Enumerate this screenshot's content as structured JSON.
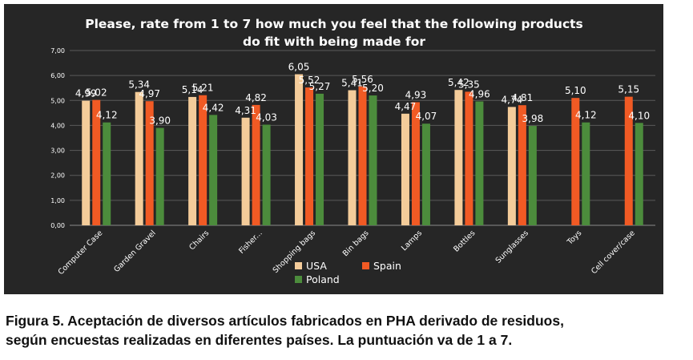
{
  "chart_data": {
    "type": "bar",
    "title_lines": [
      "Please, rate from 1 to 7 how much you feel that the following products",
      "do fit with being made for"
    ],
    "categories": [
      "Computer Case",
      "Garden Gravel",
      "Chairs",
      "Fisher...",
      "Shopping bags",
      "Bin bags",
      "Lamps",
      "Bottles",
      "Sunglasses",
      "Toys",
      "Cell cover/case"
    ],
    "series": [
      {
        "name": "USA",
        "color": "#F4CC9A",
        "values": [
          4.99,
          5.34,
          5.14,
          4.31,
          6.05,
          5.41,
          4.47,
          5.42,
          4.74,
          null,
          null
        ],
        "labels": [
          "4,99",
          "5,34",
          "5,14",
          "4,31",
          "6,05",
          "5,41",
          "4,47",
          "5,42",
          "4,74",
          null,
          null
        ]
      },
      {
        "name": "Spain",
        "color": "#F15A24",
        "values": [
          5.02,
          4.97,
          5.21,
          4.82,
          5.52,
          5.56,
          4.93,
          5.35,
          4.81,
          5.1,
          5.15
        ],
        "labels": [
          "5,02",
          "4,97",
          "5,21",
          "4,82",
          "5,52",
          "5,56",
          "4,93",
          "5,35",
          "4,81",
          "5,10",
          "5,15"
        ]
      },
      {
        "name": "Poland",
        "color": "#4C8C3C",
        "values": [
          4.12,
          3.9,
          4.42,
          4.03,
          5.27,
          5.2,
          4.07,
          4.96,
          3.98,
          4.12,
          4.1
        ],
        "labels": [
          "4,12",
          "3,90",
          "4,42",
          "4,03",
          "5,27",
          "5,20",
          "4,07",
          "4,96",
          "3,98",
          "4,12",
          "4,10"
        ]
      }
    ],
    "yticks": [
      "0,00",
      "1,00",
      "2,00",
      "3,00",
      "4,00",
      "5,00",
      "6,00",
      "7,00"
    ],
    "ylim": [
      0,
      7
    ],
    "grid": true,
    "legend_position": "bottom"
  },
  "caption": {
    "line1": "Figura 5. Aceptación de diversos artículos fabricados en PHA derivado de residuos,",
    "line2": "según encuestas realizadas en diferentes países.  La puntuación va de 1 a 7."
  }
}
